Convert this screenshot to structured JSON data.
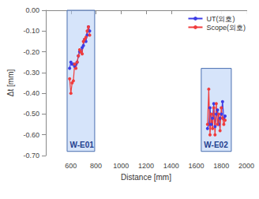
{
  "chart_data": {
    "type": "line",
    "x_label": "Distance [mm]",
    "y_label": "Δt [mm]",
    "xlim": [
      400,
      2000
    ],
    "xticks": [
      600,
      800,
      1000,
      1200,
      1400,
      1600,
      1800,
      2000
    ],
    "ylim": [
      -0.7,
      0
    ],
    "yticks": [
      {
        "value": -0.7,
        "label": "-0.70"
      },
      {
        "value": -0.6,
        "label": "-0.60"
      },
      {
        "value": -0.5,
        "label": "-0.50"
      },
      {
        "value": -0.4,
        "label": "-0.40"
      },
      {
        "value": -0.3,
        "label": "-0.30"
      },
      {
        "value": -0.2,
        "label": "-0.20"
      },
      {
        "value": -0.1,
        "label": "-0.10"
      },
      {
        "value": 0,
        "label": "0.00"
      }
    ],
    "grid": false,
    "legend": "top-right",
    "marker": "circle",
    "series": [
      {
        "name": "UT(외호)",
        "color": "#3c3ce6",
        "x": [
          590,
          600,
          610,
          620,
          630,
          640,
          650,
          660,
          670,
          680,
          690,
          700,
          710,
          720,
          730,
          740,
          750,
          null,
          1690,
          1700,
          1710,
          1720,
          1730,
          1740,
          1750,
          1760,
          1770,
          1780,
          1790,
          1800,
          1810,
          1820,
          1830
        ],
        "values": [
          -0.28,
          -0.25,
          -0.26,
          -0.26,
          -0.27,
          -0.26,
          -0.25,
          -0.22,
          -0.2,
          -0.2,
          -0.18,
          -0.17,
          -0.14,
          -0.15,
          -0.12,
          -0.08,
          -0.1,
          null,
          -0.57,
          -0.55,
          -0.47,
          -0.55,
          -0.52,
          -0.45,
          -0.56,
          -0.5,
          -0.48,
          -0.55,
          -0.52,
          -0.5,
          -0.44,
          -0.52,
          -0.51
        ]
      },
      {
        "name": "Scope(외호)",
        "color": "#f03c3c",
        "x": [
          590,
          600,
          610,
          620,
          630,
          640,
          650,
          660,
          670,
          680,
          690,
          700,
          710,
          720,
          730,
          740,
          750,
          null,
          1690,
          1700,
          1710,
          1720,
          1730,
          1740,
          1750,
          1760,
          1770,
          1780,
          1790,
          1800,
          1810,
          1820,
          1830
        ],
        "values": [
          -0.33,
          -0.4,
          -0.35,
          -0.34,
          -0.26,
          -0.28,
          -0.25,
          -0.22,
          -0.19,
          -0.2,
          -0.21,
          -0.15,
          -0.14,
          -0.13,
          -0.1,
          -0.08,
          -0.12,
          null,
          -0.55,
          -0.38,
          -0.6,
          -0.5,
          -0.57,
          -0.47,
          -0.6,
          -0.45,
          -0.55,
          -0.5,
          -0.58,
          -0.47,
          -0.52,
          -0.55,
          -0.53
        ]
      }
    ],
    "annotations": [
      {
        "text": "W-E01",
        "x": [
          570,
          790
        ],
        "y": [
          -0.68,
          0
        ]
      },
      {
        "text": "W-E02",
        "x": [
          1640,
          1880
        ],
        "y": [
          -0.68,
          -0.28
        ]
      }
    ]
  }
}
